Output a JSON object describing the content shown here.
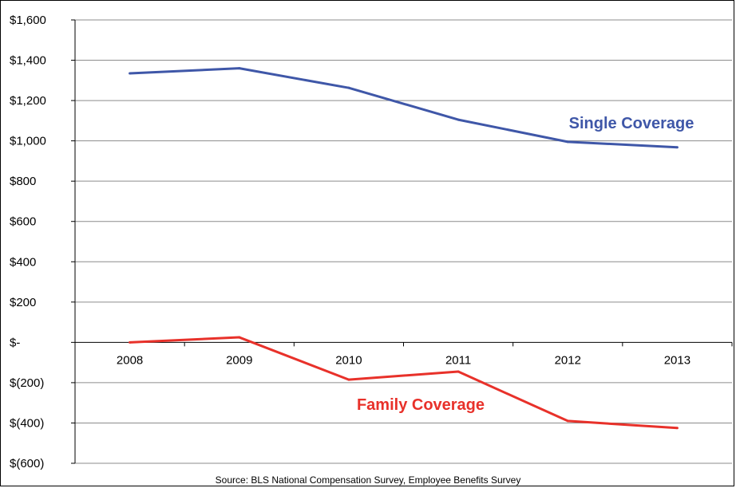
{
  "chart_data": {
    "type": "line",
    "x": [
      "2008",
      "2009",
      "2010",
      "2011",
      "2012",
      "2013"
    ],
    "series": [
      {
        "name": "Single Coverage",
        "color": "#3f57a8",
        "values": [
          1335,
          1360,
          1263,
          1105,
          995,
          968
        ]
      },
      {
        "name": "Family Coverage",
        "color": "#e8312a",
        "values": [
          0,
          25,
          -185,
          -145,
          -390,
          -425
        ]
      }
    ],
    "ylim": [
      -600,
      1600
    ],
    "y_ticks": [
      1600,
      1400,
      1200,
      1000,
      800,
      600,
      400,
      200,
      0,
      -200,
      -400,
      -600
    ],
    "y_tick_labels": [
      "$1,600",
      "$1,400",
      "$1,200",
      "$1,000",
      "$800",
      "$600",
      "$400",
      "$200",
      "$-",
      "$(200)",
      "$(400)",
      "$(600)"
    ],
    "grid": true,
    "source": "Source:  BLS National Compensation Survey, Employee Benefits Survey"
  }
}
